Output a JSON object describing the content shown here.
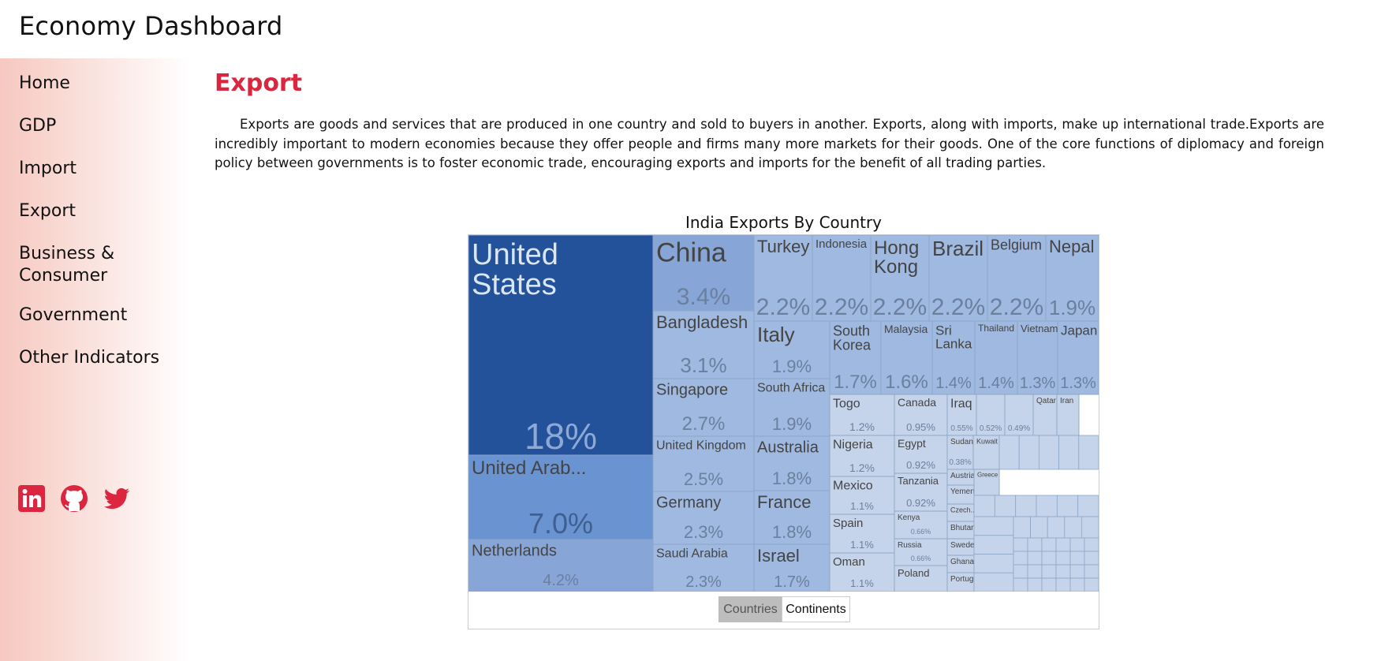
{
  "app_title": "Economy Dashboard",
  "sidebar": {
    "items": [
      {
        "label": "Home"
      },
      {
        "label": "GDP"
      },
      {
        "label": "Import"
      },
      {
        "label": "Export"
      },
      {
        "label": "Business & Consumer"
      },
      {
        "label": "Government"
      },
      {
        "label": "Other Indicators"
      }
    ],
    "social": [
      "linkedin-icon",
      "github-icon",
      "twitter-icon"
    ]
  },
  "page": {
    "title": "Export",
    "intro": "Exports are goods and services that are produced in one country and sold to buyers in another. Exports, along with imports, make up international trade.Exports are incredibly important to modern economies because they offer people and firms many more markets for their goods. One of the core functions of diplomacy and foreign policy between governments is to foster economic trade, encouraging exports and imports for the benefit of all trading parties."
  },
  "toggle": {
    "options": [
      "Countries",
      "Continents"
    ],
    "selected": "Countries"
  },
  "colors": {
    "accent": "#dc2640",
    "largest": "#23529b",
    "large": "#6a93d1",
    "medium": "#87a5d6",
    "small": "#9fb9e0",
    "smallest": "#c5d4ea"
  },
  "chart_data": {
    "type": "treemap",
    "title": "India Exports By Country",
    "unit": "%",
    "items": [
      {
        "name": "United States",
        "value": 18,
        "value_label": "18%"
      },
      {
        "name": "United Arab...",
        "value": 7.0,
        "value_label": "7.0%"
      },
      {
        "name": "Netherlands",
        "value": 4.2,
        "value_label": "4.2%"
      },
      {
        "name": "China",
        "value": 3.4,
        "value_label": "3.4%"
      },
      {
        "name": "Bangladesh",
        "value": 3.1,
        "value_label": "3.1%"
      },
      {
        "name": "Singapore",
        "value": 2.7,
        "value_label": "2.7%"
      },
      {
        "name": "United Kingdom",
        "value": 2.5,
        "value_label": "2.5%"
      },
      {
        "name": "Germany",
        "value": 2.3,
        "value_label": "2.3%"
      },
      {
        "name": "Saudi Arabia",
        "value": 2.3,
        "value_label": "2.3%"
      },
      {
        "name": "Turkey",
        "value": 2.2,
        "value_label": "2.2%"
      },
      {
        "name": "Indonesia",
        "value": 2.2,
        "value_label": "2.2%"
      },
      {
        "name": "Hong Kong",
        "value": 2.2,
        "value_label": "2.2%"
      },
      {
        "name": "Brazil",
        "value": 2.2,
        "value_label": "2.2%"
      },
      {
        "name": "Belgium",
        "value": 2.2,
        "value_label": "2.2%"
      },
      {
        "name": "Nepal",
        "value": 1.9,
        "value_label": "1.9%"
      },
      {
        "name": "Italy",
        "value": 1.9,
        "value_label": "1.9%"
      },
      {
        "name": "South Africa",
        "value": 1.9,
        "value_label": "1.9%"
      },
      {
        "name": "Australia",
        "value": 1.8,
        "value_label": "1.8%"
      },
      {
        "name": "France",
        "value": 1.8,
        "value_label": "1.8%"
      },
      {
        "name": "Israel",
        "value": 1.7,
        "value_label": "1.7%"
      },
      {
        "name": "South Korea",
        "value": 1.7,
        "value_label": "1.7%"
      },
      {
        "name": "Malaysia",
        "value": 1.6,
        "value_label": "1.6%"
      },
      {
        "name": "Sri Lanka",
        "value": 1.4,
        "value_label": "1.4%"
      },
      {
        "name": "Thailand",
        "value": 1.4,
        "value_label": "1.4%"
      },
      {
        "name": "Vietnam",
        "value": 1.3,
        "value_label": "1.3%"
      },
      {
        "name": "Japan",
        "value": 1.3,
        "value_label": "1.3%"
      },
      {
        "name": "Togo",
        "value": 1.2,
        "value_label": "1.2%"
      },
      {
        "name": "Nigeria",
        "value": 1.2,
        "value_label": "1.2%"
      },
      {
        "name": "Mexico",
        "value": 1.1,
        "value_label": "1.1%"
      },
      {
        "name": "Spain",
        "value": 1.1,
        "value_label": "1.1%"
      },
      {
        "name": "Oman",
        "value": 1.1,
        "value_label": "1.1%"
      },
      {
        "name": "Canada",
        "value": 0.95,
        "value_label": "0.95%"
      },
      {
        "name": "Egypt",
        "value": 0.92,
        "value_label": "0.92%"
      },
      {
        "name": "Tanzania",
        "value": 0.92,
        "value_label": "0.92%"
      },
      {
        "name": "Kenya",
        "value": 0.66,
        "value_label": "0.66%"
      },
      {
        "name": "Russia",
        "value": 0.66,
        "value_label": "0.66%"
      },
      {
        "name": "Poland",
        "value": null,
        "value_label": ""
      },
      {
        "name": "Iraq",
        "value": 0.55,
        "value_label": "0.55%"
      },
      {
        "name": "",
        "value": 0.52,
        "value_label": "0.52%"
      },
      {
        "name": "",
        "value": 0.49,
        "value_label": "0.49%"
      },
      {
        "name": "Qatar",
        "value": null,
        "value_label": ""
      },
      {
        "name": "Iran",
        "value": null,
        "value_label": ""
      },
      {
        "name": "Sudan",
        "value": 0.38,
        "value_label": "0.38%"
      },
      {
        "name": "Kuwait",
        "value": null,
        "value_label": ""
      },
      {
        "name": "Austria",
        "value": null,
        "value_label": ""
      },
      {
        "name": "Yemen",
        "value": null,
        "value_label": ""
      },
      {
        "name": "Czech...",
        "value": null,
        "value_label": ""
      },
      {
        "name": "Bhutan",
        "value": null,
        "value_label": ""
      },
      {
        "name": "Sweden",
        "value": null,
        "value_label": ""
      },
      {
        "name": "Ghana",
        "value": null,
        "value_label": ""
      },
      {
        "name": "Portugal",
        "value": null,
        "value_label": ""
      },
      {
        "name": "Greece",
        "value": null,
        "value_label": ""
      }
    ]
  }
}
